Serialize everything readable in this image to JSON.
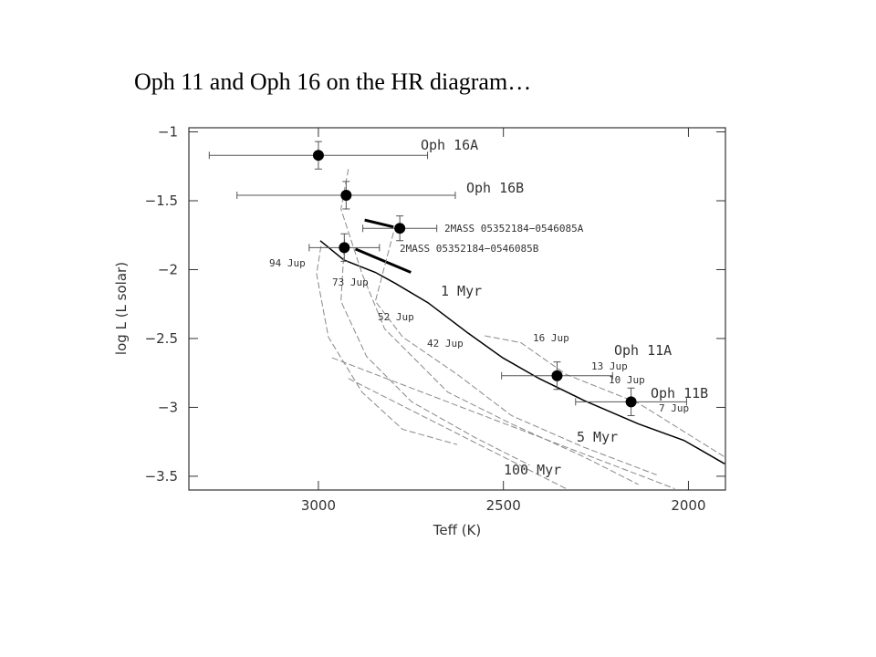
{
  "chart_data": {
    "type": "scatter",
    "title": "Oph 11 and Oph 16 on the HR diagram…",
    "x_label": "Teff (K)",
    "y_label": "log L (L solar)",
    "xlim": [
      3350,
      1900
    ],
    "ylim": [
      -0.97,
      -3.6
    ],
    "xticks": [
      3000,
      2500,
      2000
    ],
    "yticks": [
      {
        "value": -1,
        "label": "−1"
      },
      {
        "value": -1.5,
        "label": "−1.5"
      },
      {
        "value": -2,
        "label": "−2"
      },
      {
        "value": -2.5,
        "label": "−2.5"
      },
      {
        "value": -3,
        "label": "−3"
      },
      {
        "value": -3.5,
        "label": "−3.5"
      }
    ],
    "points": {
      "color": "#000",
      "x": [
        3000,
        2925,
        2780,
        2930,
        2355,
        2155
      ],
      "y": [
        -1.17,
        -1.46,
        -1.7,
        -1.84,
        -2.77,
        -2.96
      ],
      "xerr": [
        295,
        295,
        100,
        95,
        150,
        150
      ],
      "yerr": [
        0.1,
        0.1,
        0.09,
        0.1,
        0.1,
        0.1
      ]
    },
    "lines": [
      {
        "style": "solid",
        "width": 1.5,
        "x": [
          2995,
          2931,
          2846,
          2792,
          2704,
          2596,
          2502,
          2404,
          2282,
          2135,
          2012,
          1902
        ],
        "y": [
          -1.79,
          -1.93,
          -2.02,
          -2.1,
          -2.24,
          -2.46,
          -2.64,
          -2.79,
          -2.95,
          -3.12,
          -3.24,
          -3.41
        ]
      },
      {
        "style": "solid",
        "width": 3,
        "x": [
          2875,
          2797
        ],
        "y": [
          -1.64,
          -1.69
        ]
      },
      {
        "style": "solid",
        "width": 3,
        "x": [
          2900,
          2750
        ],
        "y": [
          -1.85,
          -2.02
        ]
      },
      {
        "style": "dashed",
        "width": 1,
        "x": [
          2993,
          3005,
          2973,
          2882,
          2772,
          2625
        ],
        "y": [
          -1.83,
          -2.03,
          -2.49,
          -2.89,
          -3.16,
          -3.27
        ]
      },
      {
        "style": "dashed",
        "width": 1,
        "x": [
          2929,
          2939,
          2870,
          2748,
          2576,
          2429
        ],
        "y": [
          -1.78,
          -2.23,
          -2.63,
          -2.96,
          -3.22,
          -3.42
        ]
      },
      {
        "style": "dashed",
        "width": 1,
        "x": [
          2919,
          2939,
          2882,
          2821,
          2650,
          2478,
          2282,
          2135
        ],
        "y": [
          -1.27,
          -1.56,
          -2.03,
          -2.43,
          -2.89,
          -3.12,
          -3.36,
          -3.56
        ]
      },
      {
        "style": "dashed",
        "width": 1,
        "x": [
          2797,
          2846,
          2772,
          2625,
          2478,
          2282,
          2086
        ],
        "y": [
          -1.73,
          -2.23,
          -2.49,
          -2.76,
          -3.06,
          -3.29,
          -3.49
        ]
      },
      {
        "style": "dashed",
        "width": 1,
        "x": [
          2551,
          2453,
          2331,
          2135,
          1902
        ],
        "y": [
          -2.48,
          -2.53,
          -2.76,
          -2.97,
          -3.36
        ]
      },
      {
        "style": "dashed",
        "width": 1,
        "x": [
          2963,
          2037
        ],
        "y": [
          -2.64,
          -3.59
        ]
      },
      {
        "style": "dashed",
        "width": 1,
        "x": [
          2919,
          2331
        ],
        "y": [
          -2.79,
          -3.59
        ]
      }
    ],
    "annotations": [
      "Oph 16A",
      "Oph 16B",
      "2MASS 05352184−0546085A",
      "2MASS 05352184−0546085B",
      "94 Jup",
      "73 Jup",
      "1 Myr",
      "52 Jup",
      "42 Jup",
      "16 Jup",
      "Oph 11A",
      "13 Jup",
      "10 Jup",
      "Oph 11B",
      "7 Jup",
      "5 Myr",
      "100 Myr"
    ]
  }
}
